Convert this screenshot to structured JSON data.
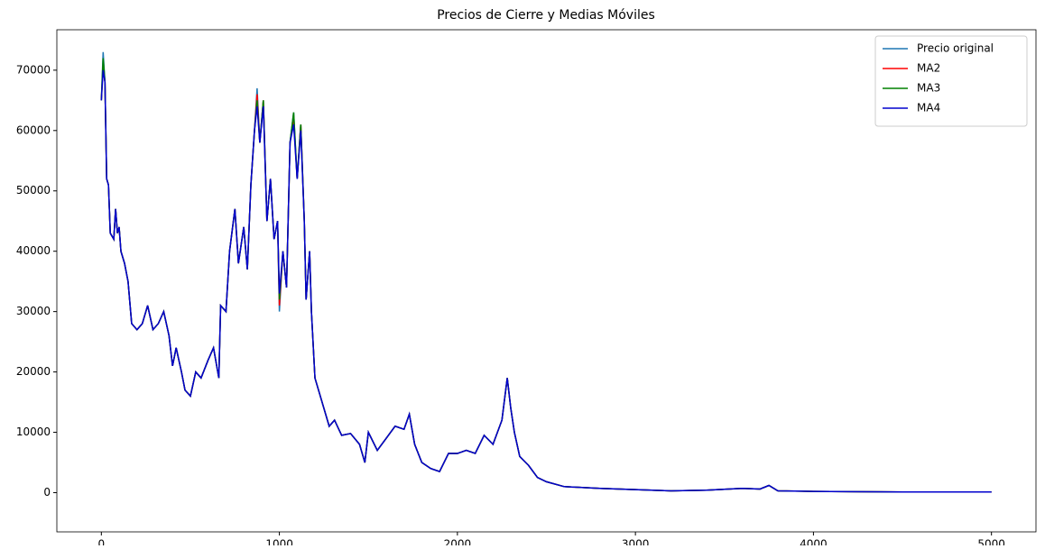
{
  "chart_data": {
    "type": "line",
    "title": "Precios de Cierre y Medias Móviles",
    "x": [
      0,
      10,
      20,
      30,
      40,
      50,
      70,
      80,
      90,
      100,
      110,
      130,
      150,
      170,
      200,
      230,
      260,
      290,
      320,
      350,
      380,
      400,
      420,
      450,
      470,
      500,
      530,
      560,
      600,
      630,
      660,
      670,
      700,
      720,
      750,
      770,
      800,
      820,
      840,
      860,
      875,
      890,
      910,
      930,
      950,
      970,
      990,
      1000,
      1020,
      1040,
      1060,
      1080,
      1100,
      1120,
      1140,
      1150,
      1170,
      1180,
      1200,
      1240,
      1280,
      1310,
      1350,
      1400,
      1450,
      1480,
      1500,
      1550,
      1600,
      1650,
      1700,
      1730,
      1760,
      1800,
      1850,
      1900,
      1950,
      2000,
      2050,
      2100,
      2150,
      2200,
      2250,
      2280,
      2300,
      2320,
      2350,
      2400,
      2450,
      2500,
      2600,
      2800,
      3000,
      3200,
      3400,
      3600,
      3700,
      3750,
      3800,
      4000,
      4500,
      5000
    ],
    "series": [
      {
        "name": "Precio original",
        "color": "#1f77b4",
        "values": [
          65000,
          73000,
          68000,
          52000,
          51000,
          43000,
          42000,
          47000,
          43000,
          44000,
          40000,
          38000,
          35000,
          28000,
          27000,
          28000,
          31000,
          27000,
          28000,
          30000,
          26000,
          21000,
          24000,
          20000,
          17000,
          16000,
          20000,
          19000,
          22000,
          24000,
          19000,
          31000,
          30000,
          40000,
          47000,
          38000,
          44000,
          37000,
          51000,
          60000,
          67000,
          58000,
          65000,
          45000,
          52000,
          42000,
          45000,
          30000,
          40000,
          34000,
          58000,
          63000,
          52000,
          61000,
          45000,
          32000,
          40000,
          30000,
          19000,
          15000,
          11000,
          12000,
          9500,
          9800,
          8000,
          5000,
          10000,
          7000,
          9000,
          11000,
          10500,
          13000,
          8000,
          5000,
          4000,
          3500,
          6500,
          6500,
          7000,
          6500,
          9500,
          8000,
          12000,
          19000,
          14000,
          10000,
          6000,
          4500,
          2500,
          1800,
          1000,
          700,
          500,
          300,
          400,
          700,
          600,
          1200,
          300,
          200,
          100,
          100
        ]
      },
      {
        "name": "MA2",
        "color": "#ff0000",
        "values": [
          65000,
          71000,
          68000,
          52000,
          51000,
          43000,
          42000,
          47000,
          43000,
          44000,
          40000,
          38000,
          35000,
          28000,
          27000,
          28000,
          31000,
          27000,
          28000,
          30000,
          26000,
          21000,
          24000,
          20000,
          17000,
          16000,
          20000,
          19000,
          22000,
          24000,
          19000,
          31000,
          30000,
          40000,
          47000,
          38000,
          44000,
          37000,
          51000,
          60000,
          66000,
          58000,
          65000,
          45000,
          52000,
          42000,
          45000,
          31000,
          40000,
          34000,
          58000,
          62000,
          52000,
          61000,
          45000,
          32000,
          40000,
          30000,
          19000,
          15000,
          11000,
          12000,
          9500,
          9800,
          8000,
          5000,
          10000,
          7000,
          9000,
          11000,
          10500,
          13000,
          8000,
          5000,
          4000,
          3500,
          6500,
          6500,
          7000,
          6500,
          9500,
          8000,
          12000,
          19000,
          14000,
          10000,
          6000,
          4500,
          2500,
          1800,
          1000,
          700,
          500,
          300,
          400,
          700,
          600,
          1200,
          300,
          200,
          100,
          100
        ]
      },
      {
        "name": "MA3",
        "color": "#008000",
        "values": [
          65000,
          72000,
          68000,
          52000,
          51000,
          43000,
          42000,
          47000,
          43000,
          44000,
          40000,
          38000,
          35000,
          28000,
          27000,
          28000,
          31000,
          27000,
          28000,
          30000,
          26000,
          21000,
          24000,
          20000,
          17000,
          16000,
          20000,
          19000,
          22000,
          24000,
          19000,
          31000,
          30000,
          40000,
          47000,
          38000,
          44000,
          37000,
          51000,
          60000,
          65000,
          58000,
          65000,
          45000,
          52000,
          42000,
          45000,
          32000,
          40000,
          34000,
          58000,
          63000,
          52000,
          61000,
          45000,
          32000,
          40000,
          30000,
          19000,
          15000,
          11000,
          12000,
          9500,
          9800,
          8000,
          5000,
          10000,
          7000,
          9000,
          11000,
          10500,
          13000,
          8000,
          5000,
          4000,
          3500,
          6500,
          6500,
          7000,
          6500,
          9500,
          8000,
          12000,
          19000,
          14000,
          10000,
          6000,
          4500,
          2500,
          1800,
          1000,
          700,
          500,
          300,
          400,
          700,
          600,
          1200,
          300,
          200,
          100,
          100
        ]
      },
      {
        "name": "MA4",
        "color": "#0000cd",
        "values": [
          65000,
          70000,
          68000,
          52000,
          51000,
          43000,
          42000,
          47000,
          43000,
          44000,
          40000,
          38000,
          35000,
          28000,
          27000,
          28000,
          31000,
          27000,
          28000,
          30000,
          26000,
          21000,
          24000,
          20000,
          17000,
          16000,
          20000,
          19000,
          22000,
          24000,
          19000,
          31000,
          30000,
          40000,
          47000,
          38000,
          44000,
          37000,
          51000,
          60000,
          64000,
          58000,
          64000,
          45000,
          52000,
          42000,
          45000,
          33000,
          40000,
          34000,
          58000,
          61000,
          52000,
          60000,
          45000,
          32000,
          40000,
          30000,
          19000,
          15000,
          11000,
          12000,
          9500,
          9800,
          8000,
          5000,
          10000,
          7000,
          9000,
          11000,
          10500,
          13000,
          8000,
          5000,
          4000,
          3500,
          6500,
          6500,
          7000,
          6500,
          9500,
          8000,
          12000,
          19000,
          14000,
          10000,
          6000,
          4500,
          2500,
          1800,
          1000,
          700,
          500,
          300,
          400,
          700,
          600,
          1200,
          300,
          200,
          100,
          100
        ]
      }
    ],
    "xlim": [
      -250,
      5250
    ],
    "xticks": [
      0,
      1000,
      2000,
      3000,
      4000,
      5000
    ],
    "ylim": [
      -6500,
      76700
    ],
    "yticks": [
      0,
      10000,
      20000,
      30000,
      40000,
      50000,
      60000,
      70000
    ],
    "legend": "upper right",
    "grid": false
  }
}
